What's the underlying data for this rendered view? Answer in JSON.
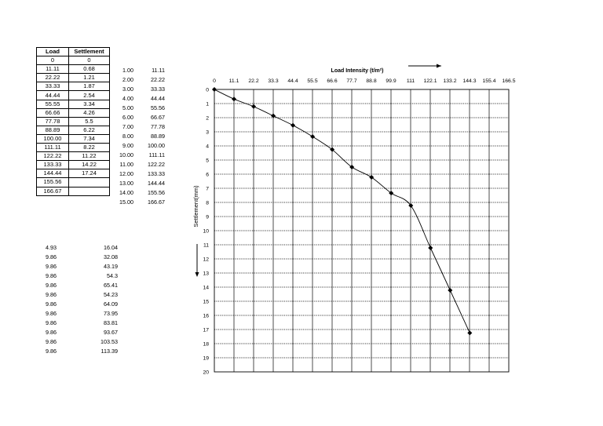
{
  "table": {
    "headers": [
      "Load",
      "Settlement"
    ],
    "rows": [
      [
        "0",
        "0"
      ],
      [
        "11.11",
        "0.68"
      ],
      [
        "22.22",
        "1.21"
      ],
      [
        "33.33",
        "1.87"
      ],
      [
        "44.44",
        "2.54"
      ],
      [
        "55.55",
        "3.34"
      ],
      [
        "66.66",
        "4.26"
      ],
      [
        "77.78",
        "5.5"
      ],
      [
        "88.89",
        "6.22"
      ],
      [
        "100.00",
        "7.34"
      ],
      [
        "111.11",
        "8.22"
      ],
      [
        "122.22",
        "11.22"
      ],
      [
        "133.33",
        "14.22"
      ],
      [
        "144.44",
        "17.24"
      ],
      [
        "155.56",
        ""
      ],
      [
        "166.67",
        ""
      ]
    ]
  },
  "sequence_column": [
    "1.00",
    "2.00",
    "3.00",
    "4.00",
    "5.00",
    "6.00",
    "7.00",
    "8.00",
    "9.00",
    "10.00",
    "11.00",
    "12.00",
    "13.00",
    "14.00",
    "15.00"
  ],
  "value_column": [
    "11.11",
    "22.22",
    "33.33",
    "44.44",
    "55.56",
    "66.67",
    "77.78",
    "88.89",
    "100.00",
    "111.11",
    "122.22",
    "133.33",
    "144.44",
    "155.56",
    "166.67"
  ],
  "extra_columns": [
    [
      "4.93",
      "16.04"
    ],
    [
      "9.86",
      "32.08"
    ],
    [
      "9.86",
      "43.19"
    ],
    [
      "9.86",
      "54.3"
    ],
    [
      "9.86",
      "65.41"
    ],
    [
      "9.86",
      "54.23"
    ],
    [
      "9.86",
      "64.09"
    ],
    [
      "9.86",
      "73.95"
    ],
    [
      "9.86",
      "83.81"
    ],
    [
      "9.86",
      "93.67"
    ],
    [
      "9.86",
      "103.53"
    ],
    [
      "9.86",
      "113.39"
    ]
  ],
  "chart_data": {
    "type": "line",
    "xlabel": "Load Intensity (t/m²)",
    "ylabel": "Settlement(mm)",
    "x_ticks": [
      "0",
      "11.1",
      "22.2",
      "33.3",
      "44.4",
      "55.5",
      "66.6",
      "77.7",
      "88.8",
      "99.9",
      "111",
      "122.1",
      "133.2",
      "144.3",
      "155.4",
      "166.5"
    ],
    "y_ticks": [
      "0",
      "1",
      "2",
      "3",
      "4",
      "5",
      "6",
      "7",
      "8",
      "9",
      "10",
      "11",
      "12",
      "13",
      "14",
      "15",
      "16",
      "17",
      "18",
      "19",
      "20"
    ],
    "xlim": [
      0,
      166.5
    ],
    "ylim": [
      0,
      20
    ],
    "y_inverted": true,
    "x_axis_position": "top",
    "grid": true,
    "series": [
      {
        "x": [
          0,
          11.11,
          22.22,
          33.33,
          44.44,
          55.55,
          66.66,
          77.78,
          88.89,
          100.0,
          111.11,
          122.22,
          133.33,
          144.44
        ],
        "y": [
          0,
          0.68,
          1.21,
          1.87,
          2.54,
          3.34,
          4.26,
          5.5,
          6.22,
          7.34,
          8.22,
          11.22,
          14.22,
          17.24
        ]
      }
    ],
    "color": "#000000"
  }
}
